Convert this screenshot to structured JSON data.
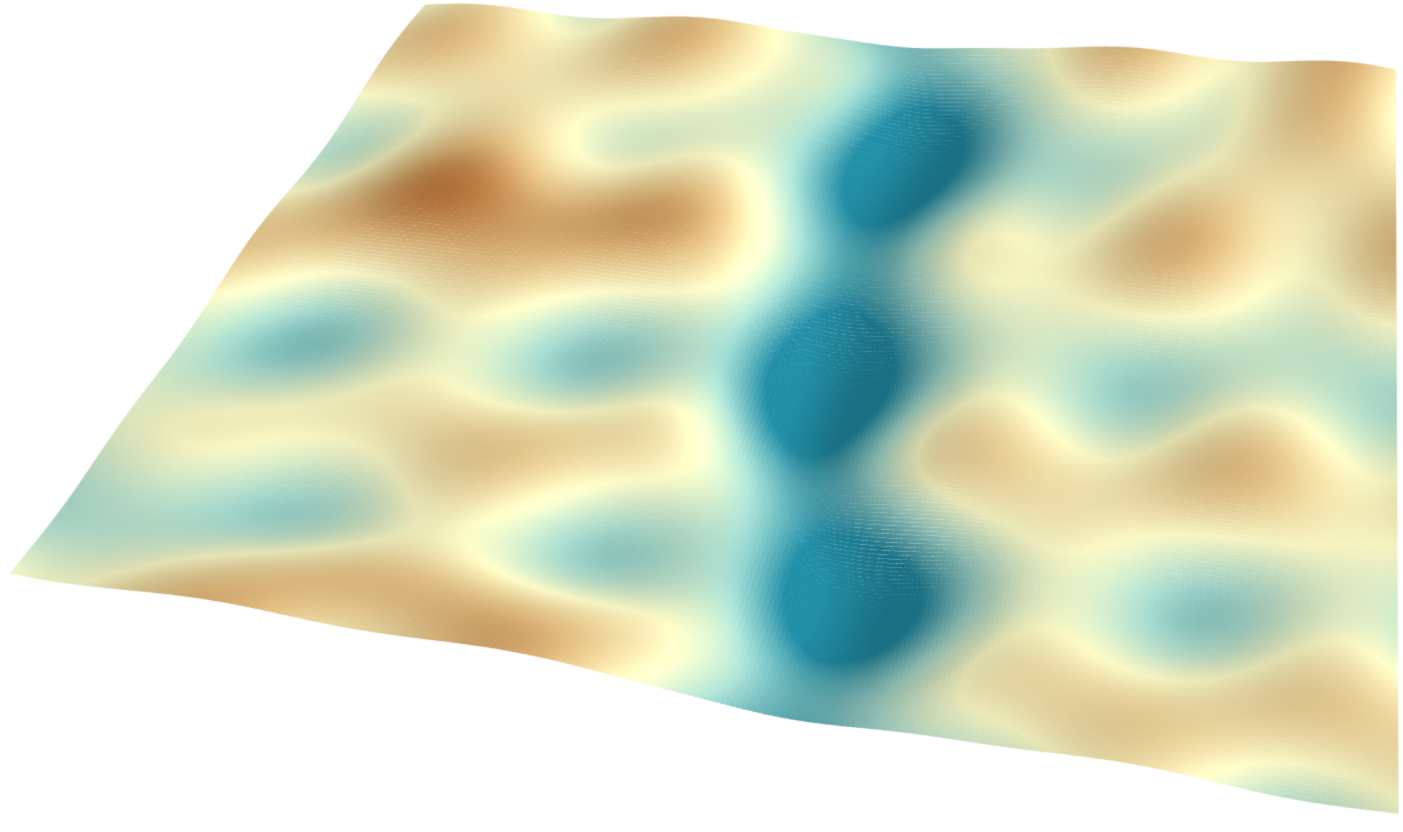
{
  "scene": {
    "kind": "3d-terrain-surface-view",
    "background": "#ffffff",
    "color_ramp": {
      "low": "#1f8096",
      "mid_low": "#9fd0c4",
      "mid": "#f4f2c0",
      "mid_high": "#d8b47a",
      "high": "#a0561f"
    },
    "features": [
      "main-valley",
      "tributary-valleys",
      "ridges"
    ]
  }
}
